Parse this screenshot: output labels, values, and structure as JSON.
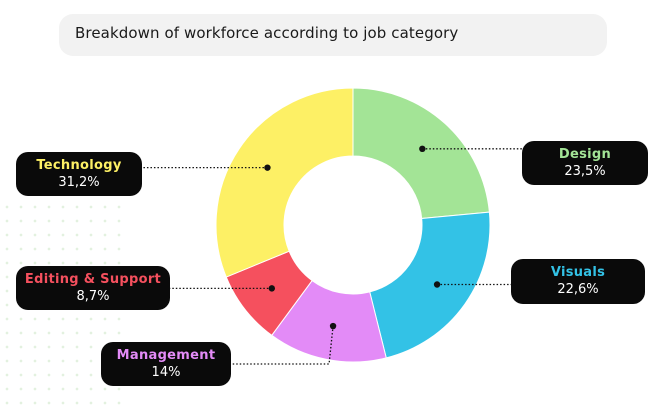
{
  "header": {
    "title": "Breakdown of workforce according to job category"
  },
  "chart_data": {
    "type": "pie",
    "style": "donut",
    "title": "Breakdown of workforce according to job category",
    "slices": [
      {
        "label": "Design",
        "value": 23.5,
        "display": "23,5%",
        "color": "#a3e496"
      },
      {
        "label": "Visuals",
        "value": 22.6,
        "display": "22,6%",
        "color": "#33c2e6"
      },
      {
        "label": "Management",
        "value": 14.0,
        "display": "14%",
        "color": "#e38bf7"
      },
      {
        "label": "Editing & Support",
        "value": 8.7,
        "display": "8,7%",
        "color": "#f5505e"
      },
      {
        "label": "Technology",
        "value": 31.2,
        "display": "31,2%",
        "color": "#fdf065"
      }
    ]
  },
  "labels": {
    "design": {
      "name": "Design",
      "value": "23,5%",
      "color": "#a3e496"
    },
    "visuals": {
      "name": "Visuals",
      "value": "22,6%",
      "color": "#33c2e6"
    },
    "management": {
      "name": "Management",
      "value": "14%",
      "color": "#e38bf7"
    },
    "editing": {
      "name": "Editing & Support",
      "value": "8,7%",
      "color": "#f5505e"
    },
    "technology": {
      "name": "Technology",
      "value": "31,2%",
      "color": "#fdf065"
    }
  }
}
